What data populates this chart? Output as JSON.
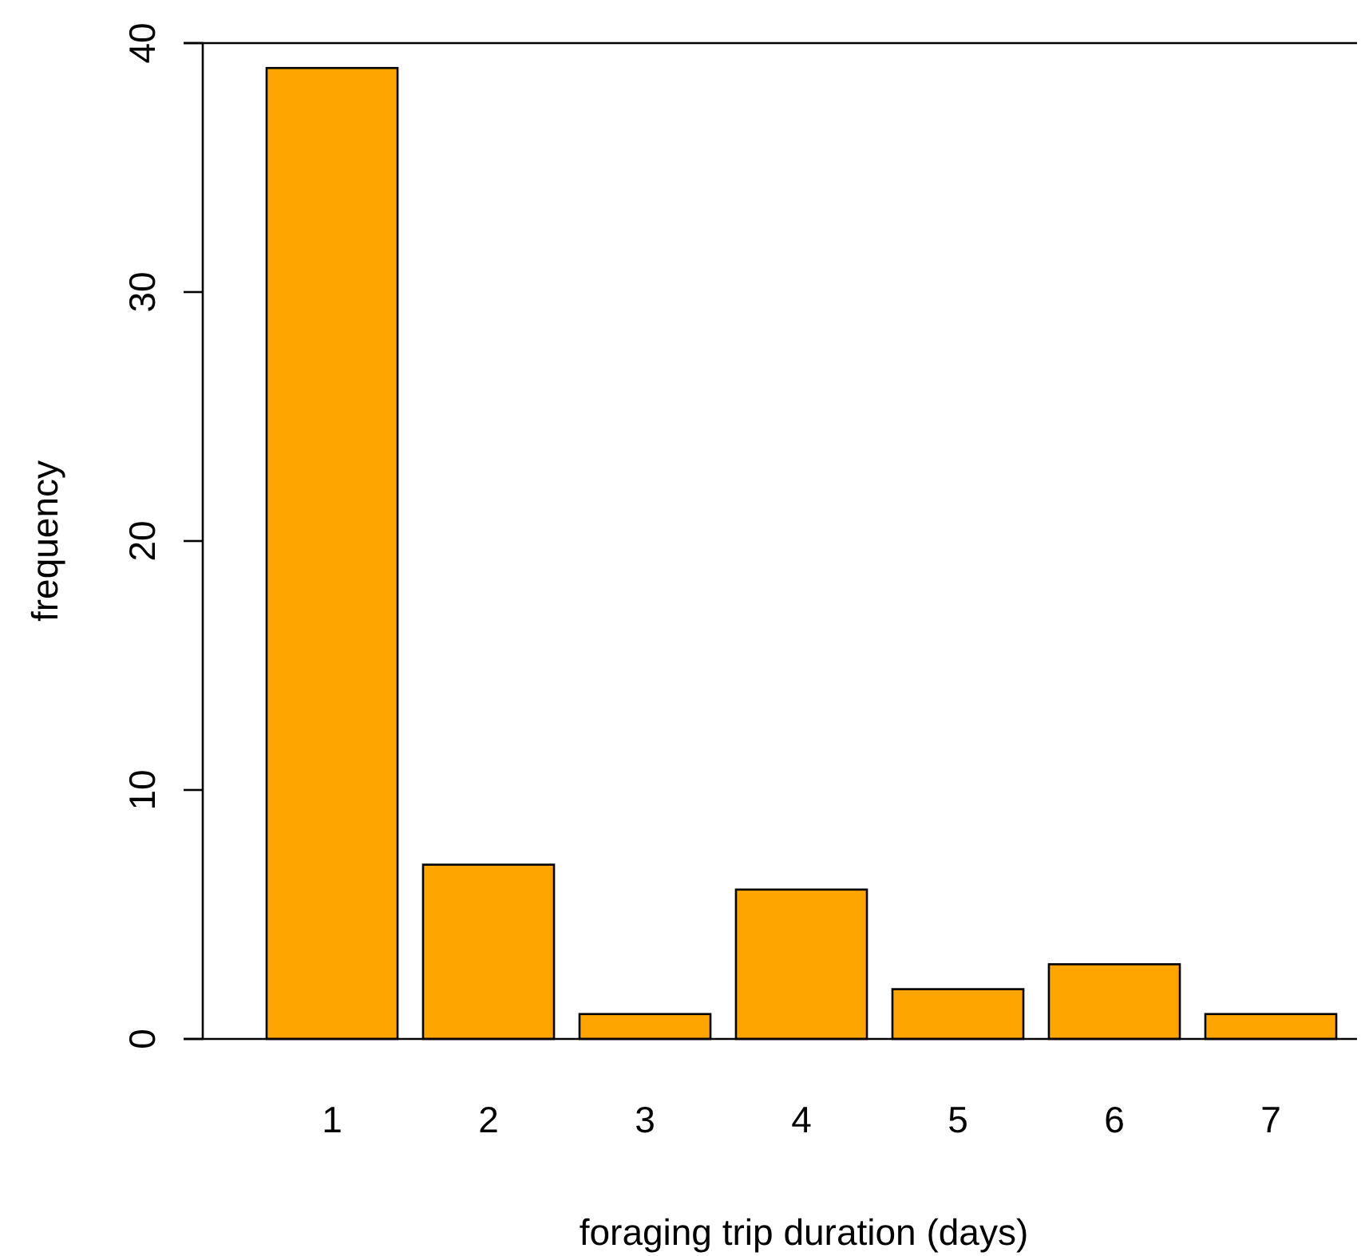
{
  "chart_data": {
    "type": "bar",
    "xlabel": "foraging trip duration (days)",
    "ylabel": "frequency",
    "categories": [
      "1",
      "2",
      "3",
      "4",
      "5",
      "6",
      "7"
    ],
    "values": [
      39,
      7,
      1,
      6,
      2,
      3,
      1
    ],
    "color": "#ffa500",
    "ylim": [
      0,
      40
    ],
    "yticks": [
      0,
      10,
      20,
      30,
      40
    ],
    "grid": false
  }
}
